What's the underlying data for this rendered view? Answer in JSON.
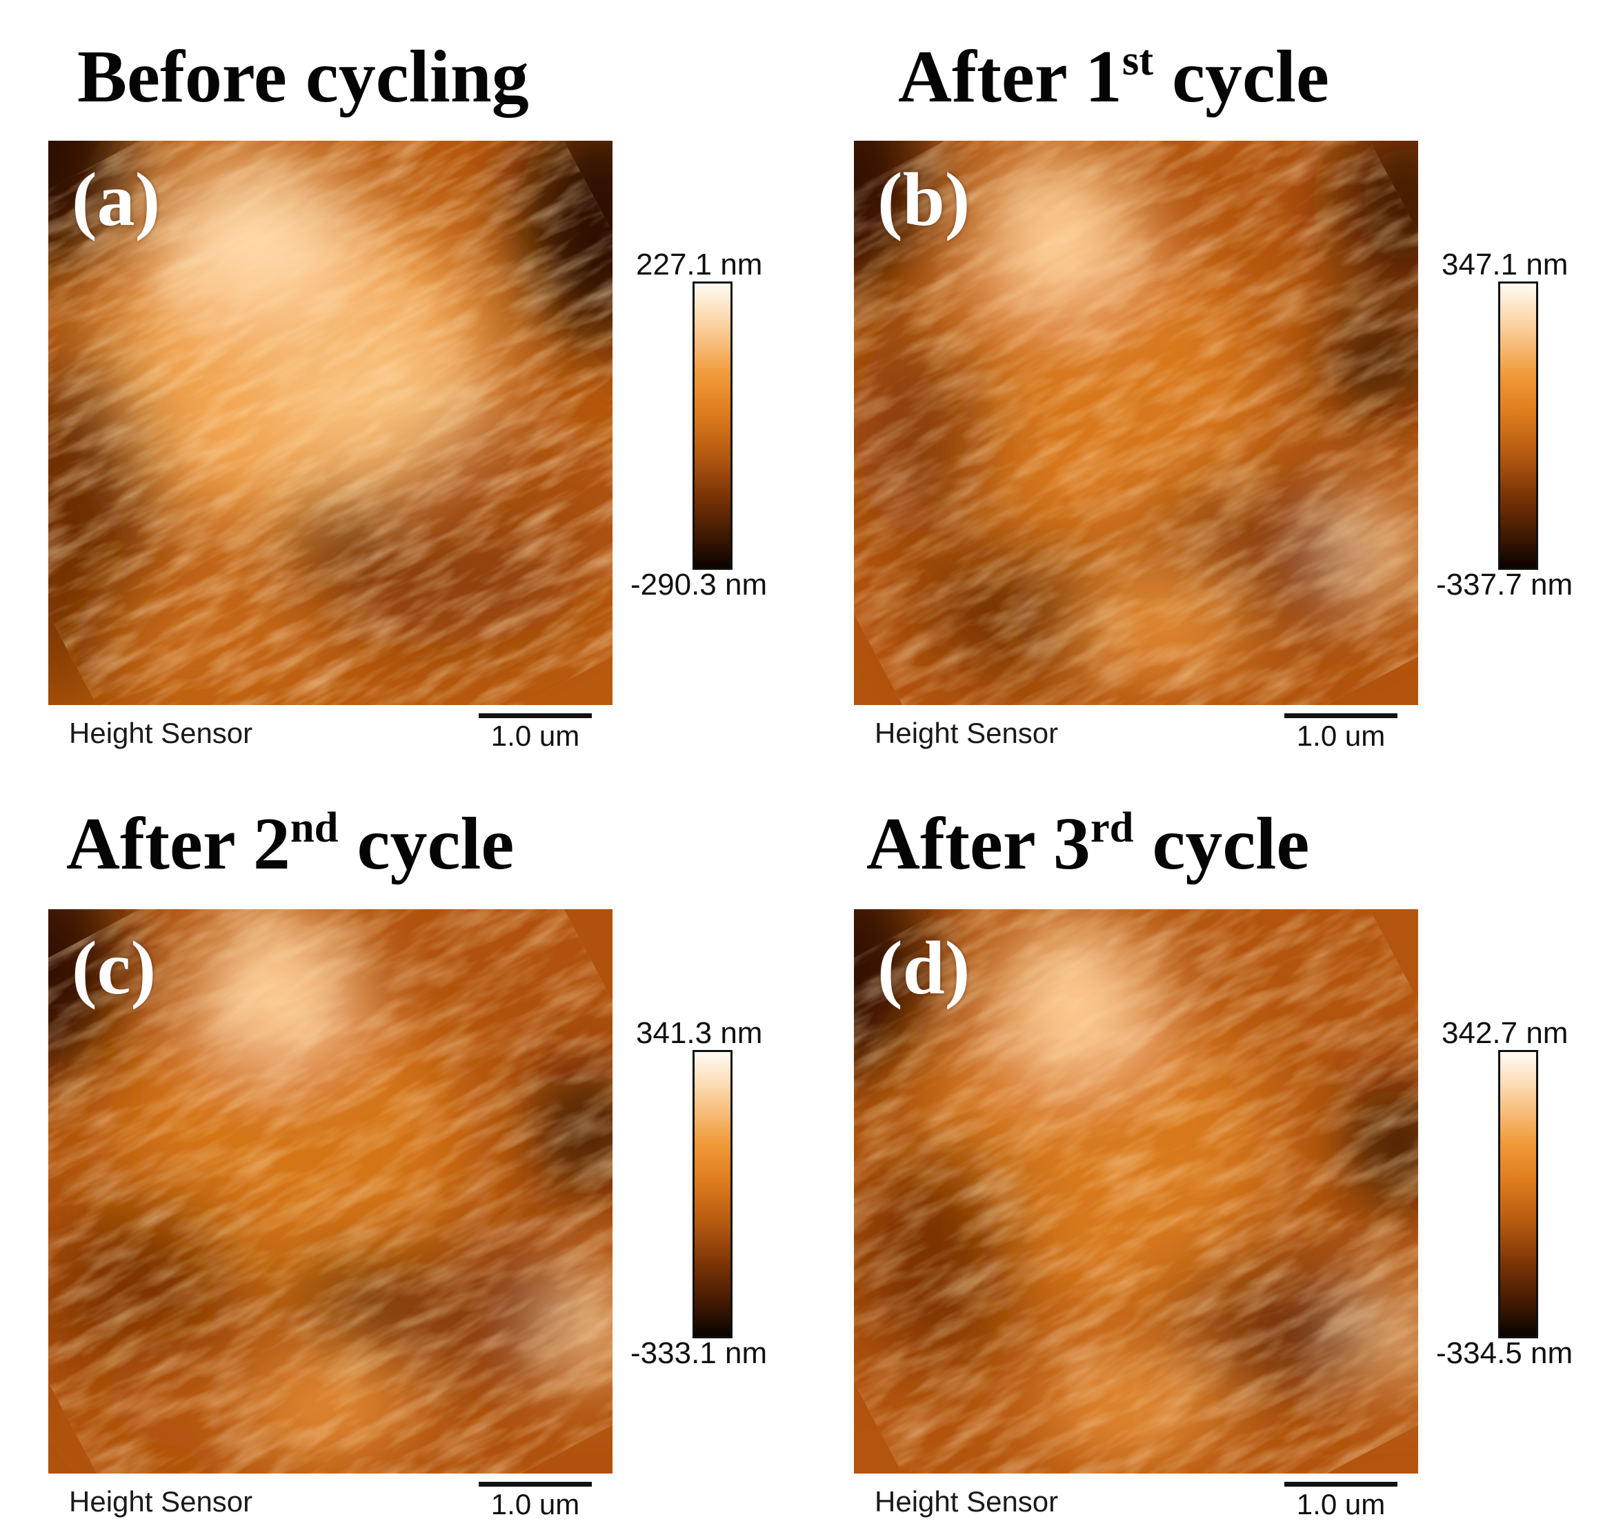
{
  "panels": [
    {
      "title_main": "Before cycling",
      "title_sup": "",
      "title_tail": "",
      "label": "(a)",
      "colorbar": {
        "max": "227.1 nm",
        "min": "-290.3 nm"
      },
      "sensor": "Height Sensor",
      "scale": "1.0 um"
    },
    {
      "title_main": "After 1",
      "title_sup": "st",
      "title_tail": " cycle",
      "label": "(b)",
      "colorbar": {
        "max": "347.1 nm",
        "min": "-337.7 nm"
      },
      "sensor": "Height Sensor",
      "scale": "1.0 um"
    },
    {
      "title_main": "After 2",
      "title_sup": "nd",
      "title_tail": " cycle",
      "label": "(c)",
      "colorbar": {
        "max": "341.3 nm",
        "min": "-333.1 nm"
      },
      "sensor": "Height Sensor",
      "scale": "1.0 um"
    },
    {
      "title_main": "After 3",
      "title_sup": "rd",
      "title_tail": " cycle",
      "label": "(d)",
      "colorbar": {
        "max": "342.7 nm",
        "min": "-334.5 nm"
      },
      "sensor": "Height Sensor",
      "scale": "1.0 um"
    }
  ],
  "colors": {
    "colormap": [
      "#0a0300",
      "#3a1602",
      "#7a3306",
      "#b55a10",
      "#df7d1e",
      "#f09a3a",
      "#fde0bb",
      "#fffaf3"
    ],
    "panel_label": "#ffffff"
  }
}
